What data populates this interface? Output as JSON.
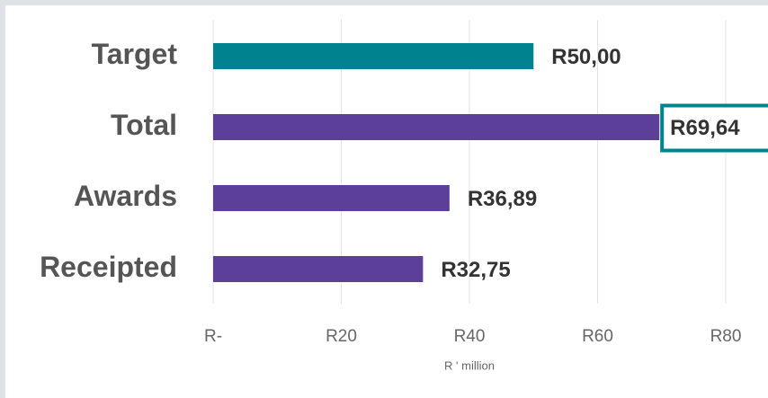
{
  "chart_data": {
    "type": "barh",
    "categories": [
      "Target",
      "Total",
      "Awards",
      "Receipted"
    ],
    "values": [
      50,
      69.64,
      36.89,
      32.75
    ],
    "value_labels": [
      "R50,00",
      "R69,64",
      "R36,89",
      "R32,75"
    ],
    "colors": [
      "#00838f",
      "#5c3f99",
      "#5c3f99",
      "#5c3f99"
    ],
    "highlight": "Total",
    "highlight_color": "#00838f",
    "xlabel": "R ' million",
    "xlim": [
      0,
      80
    ],
    "xticks": [
      {
        "value": 0,
        "label": "R-"
      },
      {
        "value": 20,
        "label": "R20"
      },
      {
        "value": 40,
        "label": "R40"
      },
      {
        "value": 60,
        "label": "R60"
      },
      {
        "value": 80,
        "label": "R80"
      }
    ],
    "grid": true
  }
}
